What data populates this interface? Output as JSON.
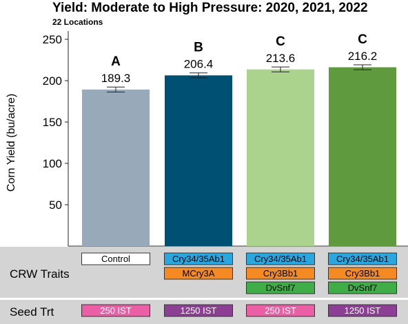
{
  "chart_data": {
    "type": "bar",
    "title": "Yield: Moderate to High Pressure: 2020, 2021, 2022",
    "subtitle": "22 Locations",
    "ylabel": "Corn Yield (bu/acre)",
    "ylim": [
      0,
      260
    ],
    "yticks": [
      50,
      100,
      150,
      200,
      250
    ],
    "grid": false,
    "error_bar_half_width": 3,
    "bars": [
      {
        "value": 189.3,
        "label": "189.3",
        "letter": "A",
        "color": "#98aab9"
      },
      {
        "value": 206.4,
        "label": "206.4",
        "letter": "B",
        "color": "#005074"
      },
      {
        "value": 213.6,
        "label": "213.6",
        "letter": "C",
        "color": "#acd38d"
      },
      {
        "value": 216.2,
        "label": "216.2",
        "letter": "C",
        "color": "#5f9a3f"
      }
    ],
    "table": {
      "crw_label": "CRW Traits",
      "seed_label": "Seed Trt",
      "columns": [
        {
          "traits": [
            {
              "text": "Control",
              "color": "#ffffff"
            }
          ],
          "seed": {
            "text": "250 IST",
            "color": "#ec5fa6"
          }
        },
        {
          "traits": [
            {
              "text": "Cry34/35Ab1",
              "color": "#2aa7df"
            },
            {
              "text": "MCry3A",
              "color": "#f58a22"
            }
          ],
          "seed": {
            "text": "1250 IST",
            "color": "#8c3f94"
          }
        },
        {
          "traits": [
            {
              "text": "Cry34/35Ab1",
              "color": "#2aa7df"
            },
            {
              "text": "Cry3Bb1",
              "color": "#f58a22"
            },
            {
              "text": "DvSnf7",
              "color": "#40ad49"
            }
          ],
          "seed": {
            "text": "250 IST",
            "color": "#ec5fa6"
          }
        },
        {
          "traits": [
            {
              "text": "Cry34/35Ab1",
              "color": "#2aa7df"
            },
            {
              "text": "Cry3Bb1",
              "color": "#f58a22"
            },
            {
              "text": "DvSnf7",
              "color": "#40ad49"
            }
          ],
          "seed": {
            "text": "1250 IST",
            "color": "#8c3f94"
          }
        }
      ]
    }
  }
}
